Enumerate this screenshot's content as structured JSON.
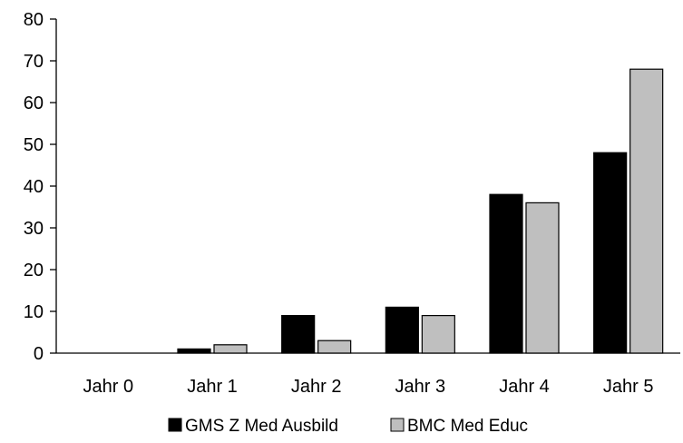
{
  "chart_data": {
    "type": "bar",
    "categories": [
      "Jahr 0",
      "Jahr 1",
      "Jahr 2",
      "Jahr 3",
      "Jahr 4",
      "Jahr 5"
    ],
    "series": [
      {
        "name": "GMS Z Med Ausbild",
        "values": [
          0,
          1,
          9,
          11,
          38,
          48
        ],
        "color": "#000000"
      },
      {
        "name": "BMC Med Educ",
        "values": [
          0,
          2,
          3,
          9,
          36,
          68
        ],
        "color": "#bfbfbf"
      }
    ],
    "ylim": [
      0,
      80
    ],
    "yticks": [
      0,
      10,
      20,
      30,
      40,
      50,
      60,
      70,
      80
    ],
    "grid": false,
    "legend_position": "bottom"
  }
}
